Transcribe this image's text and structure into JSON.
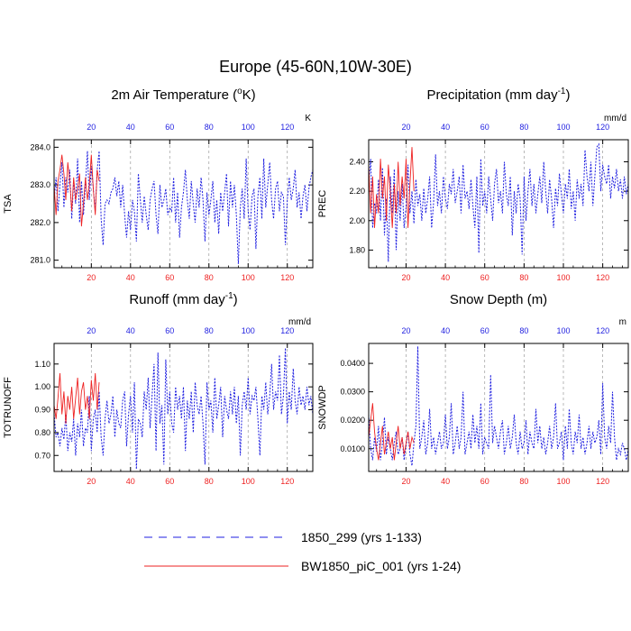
{
  "figure": {
    "title": "Europe (45-60N,10W-30E)",
    "colors": {
      "series_blue": "#1f1fe0",
      "series_red": "#ee2222",
      "grid": "#9a9a9a",
      "axis": "#000000"
    }
  },
  "legend": [
    {
      "label": "1850_299 (yrs 1-133)",
      "style": "dashed",
      "color": "#1f1fe0"
    },
    {
      "label": "BW1850_piC_001 (yrs 1-24)",
      "style": "solid",
      "color": "#ee2222"
    }
  ],
  "chart_data": [
    {
      "type": "line",
      "title_main": "2m Air Temperature (",
      "title_sup": "o",
      "title_rest": "K)",
      "unit": "K",
      "ylabel": "TSA",
      "xlim": [
        1,
        133
      ],
      "ylim": [
        280.8,
        284.2
      ],
      "yticks": [
        "281.0",
        "282.0",
        "283.0",
        "284.0"
      ],
      "ytick_values": [
        281.0,
        282.0,
        283.0,
        284.0
      ],
      "xticks": [
        "20",
        "40",
        "60",
        "80",
        "100",
        "120"
      ],
      "xtick_values": [
        20,
        40,
        60,
        80,
        100,
        120
      ],
      "series": [
        {
          "name": "1850_299 (yrs 1-133)",
          "values": [
            282.6,
            283.2,
            282.3,
            283.0,
            283.6,
            282.4,
            283.2,
            282.8,
            283.4,
            282.1,
            283.1,
            282.5,
            283.7,
            282.0,
            283.1,
            282.2,
            283.0,
            283.9,
            282.6,
            283.5,
            282.9,
            282.3,
            283.4,
            283.9,
            282.1,
            281.4,
            282.5,
            282.6,
            282.5,
            282.8,
            282.9,
            283.2,
            282.7,
            283.1,
            282.4,
            283.0,
            282.2,
            281.6,
            282.3,
            281.8,
            282.6,
            282.3,
            281.5,
            283.3,
            282.6,
            282.0,
            282.7,
            282.2,
            281.8,
            282.6,
            282.9,
            283.1,
            282.2,
            281.7,
            283.0,
            282.4,
            282.6,
            282.9,
            282.2,
            282.4,
            282.3,
            283.2,
            282.0,
            282.8,
            281.6,
            282.4,
            282.8,
            283.4,
            282.6,
            282.1,
            283.1,
            282.5,
            282.0,
            282.9,
            282.4,
            283.2,
            282.6,
            281.5,
            282.8,
            282.2,
            282.6,
            283.1,
            282.0,
            282.6,
            281.7,
            282.8,
            282.3,
            282.8,
            283.3,
            281.9,
            283.1,
            282.4,
            283.0,
            282.2,
            280.9,
            282.4,
            282.9,
            282.1,
            283.7,
            282.3,
            281.8,
            282.7,
            282.9,
            281.3,
            282.7,
            283.2,
            282.1,
            283.7,
            282.4,
            283.0,
            283.6,
            282.6,
            282.1,
            282.9,
            283.1,
            282.3,
            282.8,
            282.7,
            281.4,
            282.6,
            283.2,
            282.6,
            282.9,
            283.4,
            282.4,
            282.8,
            282.1,
            282.7,
            283.0,
            282.3,
            282.9,
            283.2,
            283.4
          ]
        },
        {
          "name": "BW1850_piC_001 (yrs 1-24)",
          "values": [
            283.0,
            282.2,
            283.1,
            283.4,
            283.8,
            283.3,
            282.6,
            283.6,
            283.1,
            282.3,
            283.2,
            282.6,
            282.9,
            283.3,
            281.9,
            282.5,
            283.2,
            282.6,
            283.0,
            283.8,
            282.9,
            282.2,
            283.4,
            283.1
          ]
        }
      ]
    },
    {
      "type": "line",
      "title_main": "Precipitation (mm day",
      "title_sup": "-1",
      "title_rest": ")",
      "unit": "mm/d",
      "ylabel": "PREC",
      "xlim": [
        1,
        133
      ],
      "ylim": [
        1.68,
        2.55
      ],
      "yticks": [
        "1.80",
        "2.00",
        "2.20",
        "2.40"
      ],
      "ytick_values": [
        1.8,
        2.0,
        2.2,
        2.4
      ],
      "xticks": [
        "20",
        "40",
        "60",
        "80",
        "100",
        "120"
      ],
      "xtick_values": [
        20,
        40,
        60,
        80,
        100,
        120
      ],
      "series": [
        {
          "name": "1850_299 (yrs 1-133)",
          "values": [
            2.25,
            2.42,
            1.95,
            2.12,
            2.05,
            2.28,
            2.0,
            2.36,
            1.9,
            2.15,
            1.72,
            2.3,
            2.05,
            2.35,
            1.8,
            2.2,
            2.0,
            2.25,
            1.95,
            2.1,
            2.38,
            2.05,
            2.2,
            1.98,
            2.28,
            2.1,
            2.18,
            2.0,
            2.22,
            2.05,
            2.15,
            2.3,
            1.95,
            2.12,
            2.45,
            2.1,
            2.2,
            2.05,
            2.3,
            2.15,
            2.08,
            2.25,
            2.18,
            2.35,
            2.12,
            2.2,
            2.3,
            2.05,
            2.38,
            2.15,
            2.2,
            2.08,
            2.28,
            2.1,
            1.95,
            2.3,
            1.78,
            2.42,
            2.1,
            2.2,
            2.05,
            2.3,
            2.15,
            2.0,
            2.25,
            2.35,
            2.12,
            2.2,
            2.05,
            2.4,
            2.18,
            2.1,
            2.3,
            1.9,
            2.2,
            2.05,
            2.25,
            2.15,
            1.77,
            2.3,
            2.0,
            2.2,
            2.35,
            2.1,
            2.25,
            2.05,
            2.18,
            2.3,
            2.12,
            2.4,
            2.2,
            2.05,
            2.28,
            2.15,
            1.95,
            2.22,
            2.1,
            2.32,
            2.18,
            2.05,
            2.25,
            2.15,
            2.35,
            2.08,
            2.2,
            2.0,
            2.28,
            2.15,
            2.25,
            2.1,
            2.48,
            2.3,
            2.2,
            2.4,
            2.1,
            2.3,
            2.5,
            2.52,
            2.2,
            2.38,
            2.3,
            2.25,
            2.38,
            2.15,
            2.3,
            2.22,
            2.35,
            2.2,
            2.28,
            2.15,
            2.3,
            2.18,
            2.25
          ]
        },
        {
          "name": "BW1850_piC_001 (yrs 1-24)",
          "values": [
            2.38,
            2.05,
            2.3,
            1.95,
            2.18,
            2.05,
            2.42,
            2.15,
            2.3,
            2.0,
            2.38,
            2.2,
            1.95,
            2.25,
            2.05,
            2.4,
            2.1,
            2.3,
            2.15,
            2.42,
            1.95,
            2.25,
            2.5,
            2.2
          ]
        }
      ]
    },
    {
      "type": "line",
      "title_main": "Runoff (mm day",
      "title_sup": "-1",
      "title_rest": ")",
      "unit": "mm/d",
      "ylabel": "TOTRUNOFF",
      "xlim": [
        1,
        133
      ],
      "ylim": [
        0.63,
        1.19
      ],
      "yticks": [
        "0.70",
        "0.80",
        "0.90",
        "1.00",
        "1.10"
      ],
      "ytick_values": [
        0.7,
        0.8,
        0.9,
        1.0,
        1.1
      ],
      "xticks": [
        "20",
        "40",
        "60",
        "80",
        "100",
        "120"
      ],
      "xtick_values": [
        20,
        40,
        60,
        80,
        100,
        120
      ],
      "series": [
        {
          "name": "1850_299 (yrs 1-133)",
          "values": [
            0.88,
            0.78,
            0.8,
            0.74,
            0.82,
            0.77,
            0.88,
            0.72,
            0.8,
            0.76,
            0.86,
            0.7,
            0.84,
            0.78,
            0.9,
            0.74,
            0.82,
            0.8,
            0.96,
            0.72,
            0.86,
            0.9,
            0.8,
            0.98,
            0.78,
            0.7,
            0.86,
            0.94,
            0.84,
            0.88,
            0.96,
            0.78,
            0.9,
            0.84,
            0.82,
            0.94,
            0.98,
            0.74,
            0.88,
            0.96,
            0.8,
            1.02,
            0.64,
            0.86,
            0.84,
            0.78,
            0.98,
            0.9,
            1.04,
            0.82,
            0.96,
            1.1,
            0.72,
            1.15,
            0.84,
            0.92,
            0.66,
            1.12,
            0.88,
            0.98,
            0.84,
            0.8,
            1.0,
            0.9,
            0.96,
            0.86,
            1.0,
            0.72,
            0.94,
            0.86,
            0.98,
            0.8,
            1.02,
            0.92,
            0.88,
            0.96,
            0.84,
            0.66,
            1.02,
            0.9,
            0.94,
            0.8,
            1.04,
            0.86,
            0.92,
            1.0,
            0.78,
            0.96,
            0.9,
            0.86,
            0.98,
            0.88,
            1.0,
            0.84,
            0.96,
            0.7,
            0.92,
            0.98,
            0.9,
            1.04,
            0.88,
            0.96,
            0.94,
            1.0,
            0.86,
            0.7,
            0.96,
            0.9,
            1.02,
            0.88,
            0.96,
            1.1,
            0.9,
            0.98,
            0.94,
            1.14,
            0.88,
            0.96,
            1.17,
            0.84,
            0.98,
            0.9,
            1.08,
            0.94,
            0.88,
            1.0,
            0.92,
            0.96,
            0.9,
            1.0,
            0.92,
            0.96,
            0.88
          ]
        },
        {
          "name": "BW1850_piC_001 (yrs 1-24)",
          "values": [
            0.92,
            0.86,
            0.95,
            1.06,
            0.88,
            0.98,
            0.84,
            0.96,
            0.9,
            1.0,
            0.86,
            0.95,
            1.04,
            0.88,
            0.98,
            1.02,
            0.9,
            0.96,
            0.86,
            1.03,
            0.94,
            1.06,
            0.9,
            1.02
          ]
        }
      ]
    },
    {
      "type": "line",
      "title_main": "Snow Depth (m)",
      "title_sup": "",
      "title_rest": "",
      "unit": "m",
      "ylabel": "SNOWDP",
      "xlim": [
        1,
        133
      ],
      "ylim": [
        0.002,
        0.047
      ],
      "yticks": [
        "0.0100",
        "0.0200",
        "0.0300",
        "0.0400"
      ],
      "ytick_values": [
        0.01,
        0.02,
        0.03,
        0.04
      ],
      "xticks": [
        "20",
        "40",
        "60",
        "80",
        "100",
        "120"
      ],
      "xtick_values": [
        20,
        40,
        60,
        80,
        100,
        120
      ],
      "series": [
        {
          "name": "1850_299 (yrs 1-133)",
          "values": [
            0.022,
            0.01,
            0.006,
            0.014,
            0.009,
            0.018,
            0.006,
            0.012,
            0.021,
            0.008,
            0.014,
            0.01,
            0.006,
            0.012,
            0.016,
            0.008,
            0.01,
            0.014,
            0.006,
            0.011,
            0.016,
            0.008,
            0.004,
            0.012,
            0.018,
            0.046,
            0.01,
            0.014,
            0.02,
            0.008,
            0.012,
            0.024,
            0.01,
            0.014,
            0.008,
            0.012,
            0.016,
            0.01,
            0.012,
            0.022,
            0.01,
            0.014,
            0.026,
            0.008,
            0.012,
            0.018,
            0.01,
            0.014,
            0.03,
            0.008,
            0.012,
            0.016,
            0.01,
            0.022,
            0.012,
            0.018,
            0.01,
            0.026,
            0.008,
            0.014,
            0.012,
            0.01,
            0.036,
            0.012,
            0.018,
            0.014,
            0.01,
            0.016,
            0.02,
            0.008,
            0.012,
            0.018,
            0.01,
            0.014,
            0.022,
            0.012,
            0.008,
            0.016,
            0.01,
            0.012,
            0.02,
            0.008,
            0.016,
            0.012,
            0.01,
            0.024,
            0.012,
            0.018,
            0.01,
            0.014,
            0.008,
            0.012,
            0.018,
            0.01,
            0.014,
            0.026,
            0.01,
            0.012,
            0.016,
            0.006,
            0.018,
            0.01,
            0.024,
            0.012,
            0.008,
            0.016,
            0.012,
            0.022,
            0.01,
            0.014,
            0.008,
            0.012,
            0.018,
            0.01,
            0.016,
            0.012,
            0.014,
            0.02,
            0.008,
            0.033,
            0.014,
            0.01,
            0.018,
            0.012,
            0.03,
            0.014,
            0.006,
            0.01,
            0.008,
            0.012,
            0.01,
            0.006,
            0.01
          ]
        },
        {
          "name": "BW1850_piC_001 (yrs 1-24)",
          "values": [
            0.014,
            0.02,
            0.026,
            0.016,
            0.01,
            0.006,
            0.012,
            0.018,
            0.008,
            0.012,
            0.016,
            0.01,
            0.014,
            0.006,
            0.012,
            0.018,
            0.01,
            0.014,
            0.008,
            0.012,
            0.016,
            0.01,
            0.014,
            0.012
          ]
        }
      ]
    }
  ]
}
